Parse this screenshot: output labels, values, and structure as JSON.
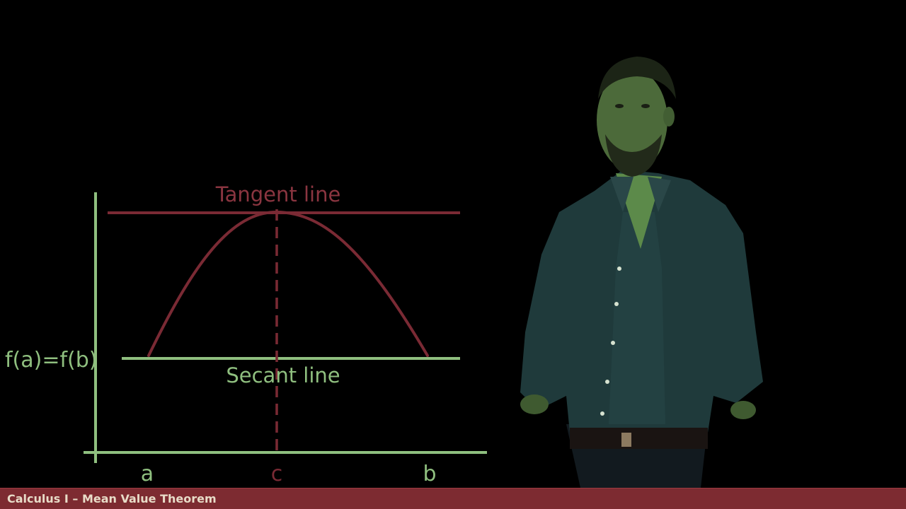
{
  "diagram": {
    "labels": {
      "tangent": "Tangent line",
      "secant": "Secant line",
      "f_equal": "f(a)=f(b)",
      "a": "a",
      "c": "c",
      "b": "b"
    },
    "colors": {
      "axis": "#8fbf7f",
      "secant": "#8fbf7f",
      "curve": "#7a2a34",
      "tangent": "#7a2a34",
      "tangent_label": "#8a3540",
      "dashed": "#7a2a34",
      "text_green": "#8fbf7f"
    },
    "icons": {
      "presenter": "presenter-photo"
    }
  },
  "lower_third": {
    "title": "Calculus I – Mean Value Theorem",
    "background": "#7d2b31",
    "text_color": "#e8dcc8"
  }
}
